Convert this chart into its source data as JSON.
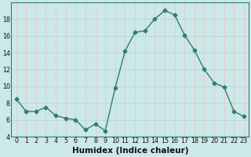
{
  "x": [
    0,
    1,
    2,
    3,
    4,
    5,
    6,
    7,
    8,
    9,
    10,
    11,
    12,
    13,
    14,
    15,
    16,
    17,
    18,
    19,
    20,
    21,
    22,
    23
  ],
  "y": [
    8.5,
    7.0,
    7.0,
    7.5,
    6.5,
    6.2,
    6.0,
    4.8,
    5.5,
    4.7,
    9.8,
    14.2,
    16.4,
    16.6,
    18.0,
    19.0,
    18.5,
    16.1,
    14.3,
    12.0,
    10.4,
    9.9,
    7.0,
    6.4
  ],
  "line_color": "#2e7d6e",
  "marker": "D",
  "markersize": 2.5,
  "linewidth": 1.0,
  "xlabel": "Humidex (Indice chaleur)",
  "xlabel_fontsize": 7.5,
  "xlim": [
    -0.5,
    23.5
  ],
  "ylim": [
    4,
    20
  ],
  "yticks": [
    4,
    6,
    8,
    10,
    12,
    14,
    16,
    18
  ],
  "xticks": [
    0,
    1,
    2,
    3,
    4,
    5,
    6,
    7,
    8,
    9,
    10,
    11,
    12,
    13,
    14,
    15,
    16,
    17,
    18,
    19,
    20,
    21,
    22,
    23
  ],
  "grid_color_minor": "#e8c8c8",
  "grid_color_major": "#b8d8d8",
  "bg_color": "#cce8e8",
  "tick_fontsize": 5.8
}
